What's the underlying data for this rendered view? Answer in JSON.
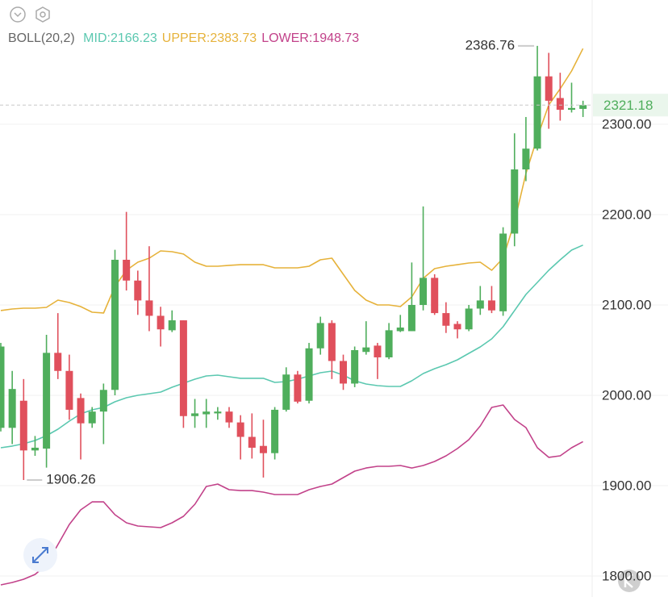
{
  "chart_data": {
    "type": "candlestick",
    "indicator": "BOLL(20,2)",
    "up_color": "#4fae5c",
    "down_color": "#e0505c",
    "ylim": [
      1776.79,
      2437.5
    ],
    "yticks": [
      {
        "value": 1800,
        "label": "1800.00"
      },
      {
        "value": 1900,
        "label": "1900.00"
      },
      {
        "value": 2000,
        "label": "2000.00"
      },
      {
        "value": 2100,
        "label": "2100.00"
      },
      {
        "value": 2200,
        "label": "2200.00"
      },
      {
        "value": 2300,
        "label": "2300.00"
      }
    ],
    "grid": true,
    "open": [
      1964,
      1964,
      1994,
      1939,
      1941,
      2047,
      2027,
      1997,
      1969,
      1982,
      2006,
      2150,
      2127,
      2105,
      2088,
      2072,
      2083,
      1977,
      1979,
      1980,
      1982,
      1970,
      1954,
      1944,
      1936,
      1984,
      2023,
      1994,
      2052,
      2080,
      2038,
      2013,
      2048,
      2055,
      2042,
      2071,
      2071,
      2100,
      2130,
      2091,
      2079,
      2073,
      2096,
      2105,
      2093,
      2179,
      2250,
      2273,
      2353,
      2329,
      2316,
      2317
    ],
    "high": [
      2058,
      2027,
      2018,
      1955,
      2067,
      2091,
      2045,
      2002,
      1987,
      2013,
      2161,
      2203,
      2138,
      2165,
      2098,
      2094,
      2083,
      1996,
      1996,
      1987,
      1987,
      1978,
      1980,
      1973,
      1987,
      2031,
      2027,
      2058,
      2087,
      2083,
      2045,
      2054,
      2082,
      2058,
      2080,
      2089,
      2147,
      2209,
      2134,
      2103,
      2082,
      2100,
      2121,
      2121,
      2186,
      2290,
      2308,
      2386.76,
      2379,
      2357,
      2346,
      2326
    ],
    "low": [
      1960,
      1946,
      1906.26,
      1933,
      1920,
      2018,
      1973,
      1929,
      1964,
      1946,
      2000,
      2116,
      2089,
      2071,
      2054,
      2070,
      1964,
      1964,
      1964,
      1973,
      1964,
      1929,
      1930,
      1909,
      1929,
      1982,
      1991,
      1991,
      2045,
      2018,
      2006,
      2009,
      2045,
      2018,
      2040,
      2070,
      2071,
      2094,
      2089,
      2069,
      2063,
      2071,
      2089,
      2091,
      2088,
      2165,
      2237,
      2271,
      2295,
      2304,
      2313,
      2308
    ],
    "close": [
      2054,
      2007,
      1939,
      1942,
      2047,
      2027,
      1984,
      1969,
      1982,
      2006,
      2150,
      2127,
      2105,
      2088,
      2073,
      2083,
      1977,
      1980,
      1982,
      1982,
      1970,
      1954,
      1942,
      1936,
      1984,
      2023,
      1993,
      2052,
      2080,
      2038,
      2013,
      2050,
      2053,
      2042,
      2072,
      2075,
      2100,
      2130,
      2091,
      2077,
      2073,
      2096,
      2105,
      2094,
      2179,
      2250,
      2273,
      2353,
      2326,
      2316,
      2318,
      2321.18
    ],
    "series": [
      {
        "name": "MID:2166.23",
        "color": "#5bc8b0",
        "values": [
          1942.0,
          1943.8,
          1946.4,
          1950.0,
          1955.4,
          1962.5,
          1971.4,
          1979.5,
          1983.9,
          1986.6,
          1992.9,
          1997.3,
          2000.0,
          2001.8,
          2003.6,
          2008.9,
          2013.4,
          2017.9,
          2021.4,
          2022.3,
          2020.5,
          2018.8,
          2018.8,
          2018.8,
          2014.3,
          2015.2,
          2017.9,
          2021.4,
          2025.0,
          2026.8,
          2022.3,
          2016.1,
          2012.5,
          2010.7,
          2009.8,
          2009.8,
          2016.1,
          2024.1,
          2029.5,
          2033.9,
          2039.3,
          2046.4,
          2053.6,
          2062.5,
          2075.9,
          2093.8,
          2111.6,
          2125.0,
          2138.4,
          2150.0,
          2160.7,
          2166.23
        ]
      },
      {
        "name": "UPPER:2383.73",
        "color": "#e6b23a",
        "values": [
          2093.8,
          2095.5,
          2096.4,
          2096.4,
          2097.3,
          2105.4,
          2102.7,
          2098.2,
          2092.0,
          2091.1,
          2120.5,
          2138.4,
          2147.3,
          2151.8,
          2159.8,
          2158.9,
          2156.3,
          2147.3,
          2142.9,
          2142.9,
          2143.8,
          2144.6,
          2144.6,
          2144.6,
          2141.1,
          2141.1,
          2141.1,
          2142.9,
          2150.0,
          2151.8,
          2133.9,
          2116.1,
          2105.4,
          2100.0,
          2100.0,
          2098.2,
          2108.9,
          2129.5,
          2140.2,
          2142.9,
          2144.6,
          2146.4,
          2147.3,
          2138.4,
          2151.8,
          2192.0,
          2245.5,
          2285.7,
          2321.4,
          2339.3,
          2358.9,
          2383.73
        ]
      },
      {
        "name": "LOWER:1948.73",
        "color": "#c2428a",
        "values": [
          1790.2,
          1792.9,
          1796.4,
          1801.8,
          1812.5,
          1834.8,
          1857.1,
          1873.2,
          1882.1,
          1882.1,
          1867.9,
          1858.9,
          1855.4,
          1854.5,
          1853.6,
          1858.9,
          1866.1,
          1879.5,
          1899.1,
          1901.8,
          1895.5,
          1894.6,
          1894.6,
          1892.9,
          1890.2,
          1890.2,
          1890.2,
          1895.5,
          1899.1,
          1901.8,
          1908.9,
          1916.1,
          1919.6,
          1921.4,
          1921.4,
          1922.3,
          1919.6,
          1922.3,
          1926.8,
          1933.0,
          1941.1,
          1950.9,
          1966.1,
          1986.6,
          1989.3,
          1973.2,
          1964.3,
          1942.0,
          1931.3,
          1933.0,
          1942.0,
          1948.73
        ]
      }
    ]
  }
}
